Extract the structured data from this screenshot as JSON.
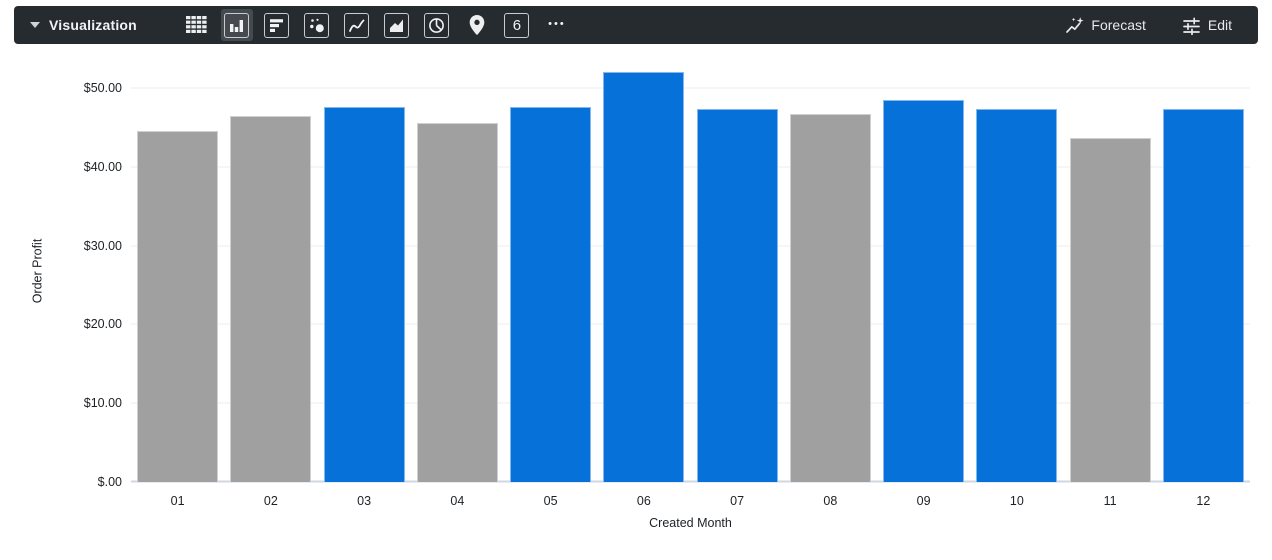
{
  "toolbar": {
    "menu": {
      "label": "Visualization"
    },
    "viz_types": [
      {
        "id": "table",
        "selected": false
      },
      {
        "id": "column",
        "selected": true
      },
      {
        "id": "bar",
        "selected": false
      },
      {
        "id": "scatter",
        "selected": false
      },
      {
        "id": "line",
        "selected": false
      },
      {
        "id": "area",
        "selected": false
      },
      {
        "id": "pie",
        "selected": false
      },
      {
        "id": "map",
        "selected": false
      },
      {
        "id": "single-value",
        "selected": false,
        "glyph": "6"
      },
      {
        "id": "more-options",
        "selected": false,
        "glyph": "•••"
      }
    ],
    "actions": [
      {
        "id": "forecast",
        "label": "Forecast"
      },
      {
        "id": "edit",
        "label": "Edit"
      }
    ]
  },
  "colors": {
    "bar_blue": "#0671D9",
    "bar_gray": "#A0A0A0",
    "toolbar_bg": "#262b2f"
  },
  "chart_data": {
    "type": "bar",
    "title": "",
    "xlabel": "Created Month",
    "ylabel": "Order Profit",
    "categories": [
      "01",
      "02",
      "03",
      "04",
      "05",
      "06",
      "07",
      "08",
      "09",
      "10",
      "11",
      "12"
    ],
    "values": [
      44.6,
      46.4,
      47.6,
      45.6,
      47.6,
      52.0,
      47.3,
      46.7,
      48.5,
      47.3,
      43.6,
      47.3
    ],
    "bar_colors": [
      "#A0A0A0",
      "#A0A0A0",
      "#0671D9",
      "#A0A0A0",
      "#0671D9",
      "#0671D9",
      "#0671D9",
      "#A0A0A0",
      "#0671D9",
      "#0671D9",
      "#A0A0A0",
      "#0671D9"
    ],
    "y_ticks": [
      "$50.00",
      "$40.00",
      "$30.00",
      "$20.00",
      "$10.00",
      "$.00"
    ],
    "y_tick_values": [
      50,
      40,
      30,
      20,
      10,
      0
    ],
    "ylim": [
      0,
      53.55
    ],
    "grid": true,
    "legend": "none"
  }
}
